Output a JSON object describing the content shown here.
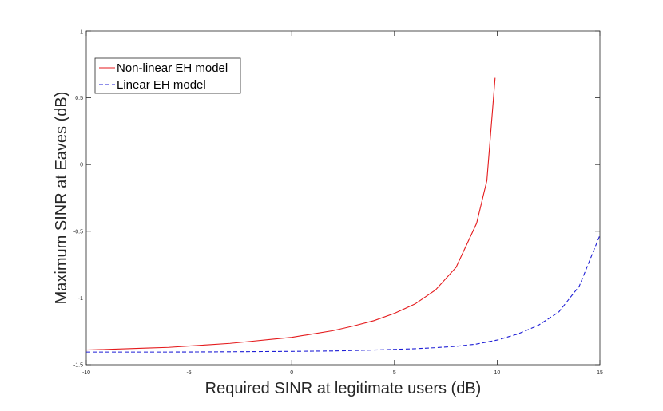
{
  "chart_data": {
    "type": "line",
    "xlabel": "Required SINR at legitimate users (dB)",
    "ylabel": "Maximum SINR at Eaves (dB)",
    "xlim": [
      -10,
      15
    ],
    "ylim": [
      -1.5,
      1
    ],
    "xticks": [
      "-10",
      "-5",
      "0",
      "5",
      "10",
      "15"
    ],
    "yticks": [
      "-1.5",
      "-1",
      "-0.5",
      "0",
      "0.5",
      "1"
    ],
    "grid": false,
    "legend_position": "top-left",
    "series": [
      {
        "name": "Non-linear EH model",
        "color": "#e41a1c",
        "dash": "solid",
        "x": [
          -10,
          -9,
          -8,
          -7,
          -6,
          -5,
          -4,
          -3,
          -2,
          -1,
          0,
          1,
          2,
          3,
          4,
          5,
          6,
          7,
          8,
          9,
          9.5,
          9.9
        ],
        "y": [
          -1.39,
          -1.385,
          -1.38,
          -1.375,
          -1.37,
          -1.36,
          -1.35,
          -1.34,
          -1.325,
          -1.31,
          -1.295,
          -1.27,
          -1.245,
          -1.21,
          -1.17,
          -1.115,
          -1.045,
          -0.94,
          -0.77,
          -0.44,
          -0.12,
          0.65
        ]
      },
      {
        "name": "Linear EH model",
        "color": "#1f1fd6",
        "dash": "dashed",
        "x": [
          -10,
          -8,
          -6,
          -4,
          -2,
          0,
          2,
          4,
          6,
          7,
          8,
          9,
          10,
          11,
          12,
          13,
          14,
          15
        ],
        "y": [
          -1.405,
          -1.405,
          -1.405,
          -1.404,
          -1.402,
          -1.4,
          -1.397,
          -1.39,
          -1.38,
          -1.372,
          -1.362,
          -1.345,
          -1.315,
          -1.27,
          -1.205,
          -1.105,
          -0.91,
          -0.53
        ]
      }
    ]
  }
}
